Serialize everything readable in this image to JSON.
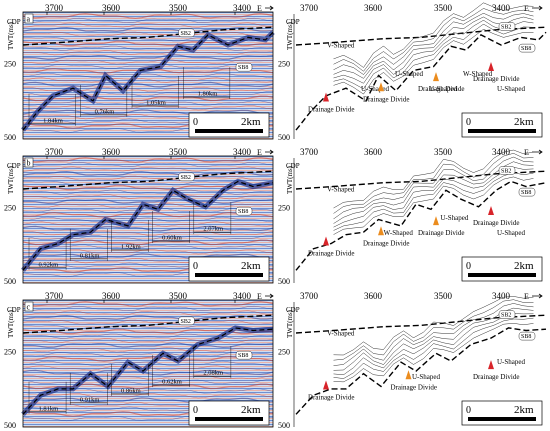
{
  "rows": [
    {
      "letter": "a",
      "cdp": "CDP",
      "cdp_ticks": [
        "3700",
        "3600",
        "3500",
        "3400"
      ],
      "dir": "E",
      "axis": "TWT(ms)",
      "ytick_top": "250",
      "ytick_bottom": "500",
      "horizons": [
        "SB2",
        "SB8"
      ],
      "distances": [
        "1.84km",
        "0.76km",
        "1.05km",
        "1.80km"
      ],
      "interp": [
        "V-Shaped",
        "U-Shaped",
        "U-Shaped",
        "U-Shaped",
        "W-Shaped",
        "U-Shaped"
      ],
      "divides": [
        "Drainage Divide",
        "Drainage Divide",
        "Drainage Divide",
        "Drainage Divide"
      ],
      "scale_zero": "0",
      "scale_label": "2km"
    },
    {
      "letter": "b",
      "cdp": "CDP",
      "cdp_ticks": [
        "3700",
        "3600",
        "3500",
        "3400"
      ],
      "dir": "E",
      "axis": "TWT(ms)",
      "ytick_top": "250",
      "ytick_bottom": "500",
      "horizons": [
        "SB2",
        "SB8"
      ],
      "distances": [
        "0.92km",
        "0.81km",
        "1.92km",
        "0.60km",
        "2.07km"
      ],
      "interp": [
        "V-Shaped",
        "W-Shaped",
        "U-Shaped",
        "U-Shaped"
      ],
      "divides": [
        "Drainage Divide",
        "Drainage Divide",
        "Drainage Divide",
        "Drainage Divide"
      ],
      "scale_zero": "0",
      "scale_label": "2km"
    },
    {
      "letter": "c",
      "cdp": "CDP",
      "cdp_ticks": [
        "3700",
        "3600",
        "3500",
        "3400"
      ],
      "dir": "E",
      "axis": "TWT(ms)",
      "ytick_top": "250",
      "ytick_bottom": "500",
      "horizons": [
        "SB2",
        "SB8"
      ],
      "distances": [
        "1.81km",
        "0.91km",
        "0.86km",
        "0.62km",
        "2.08km"
      ],
      "interp": [
        "V-Shaped",
        "U-Shaped",
        "U-Shaped"
      ],
      "divides": [
        "Drainage Divide",
        "Drainage Divide",
        "Drainage Divide"
      ],
      "scale_zero": "0",
      "scale_label": "2km"
    }
  ],
  "colors": {
    "seismic_base": "#d8e4f4",
    "trough": "#1f3fa0",
    "peak": "#c53a2c",
    "divide_red": "#d8242a",
    "divide_orange": "#eb8c1e"
  }
}
